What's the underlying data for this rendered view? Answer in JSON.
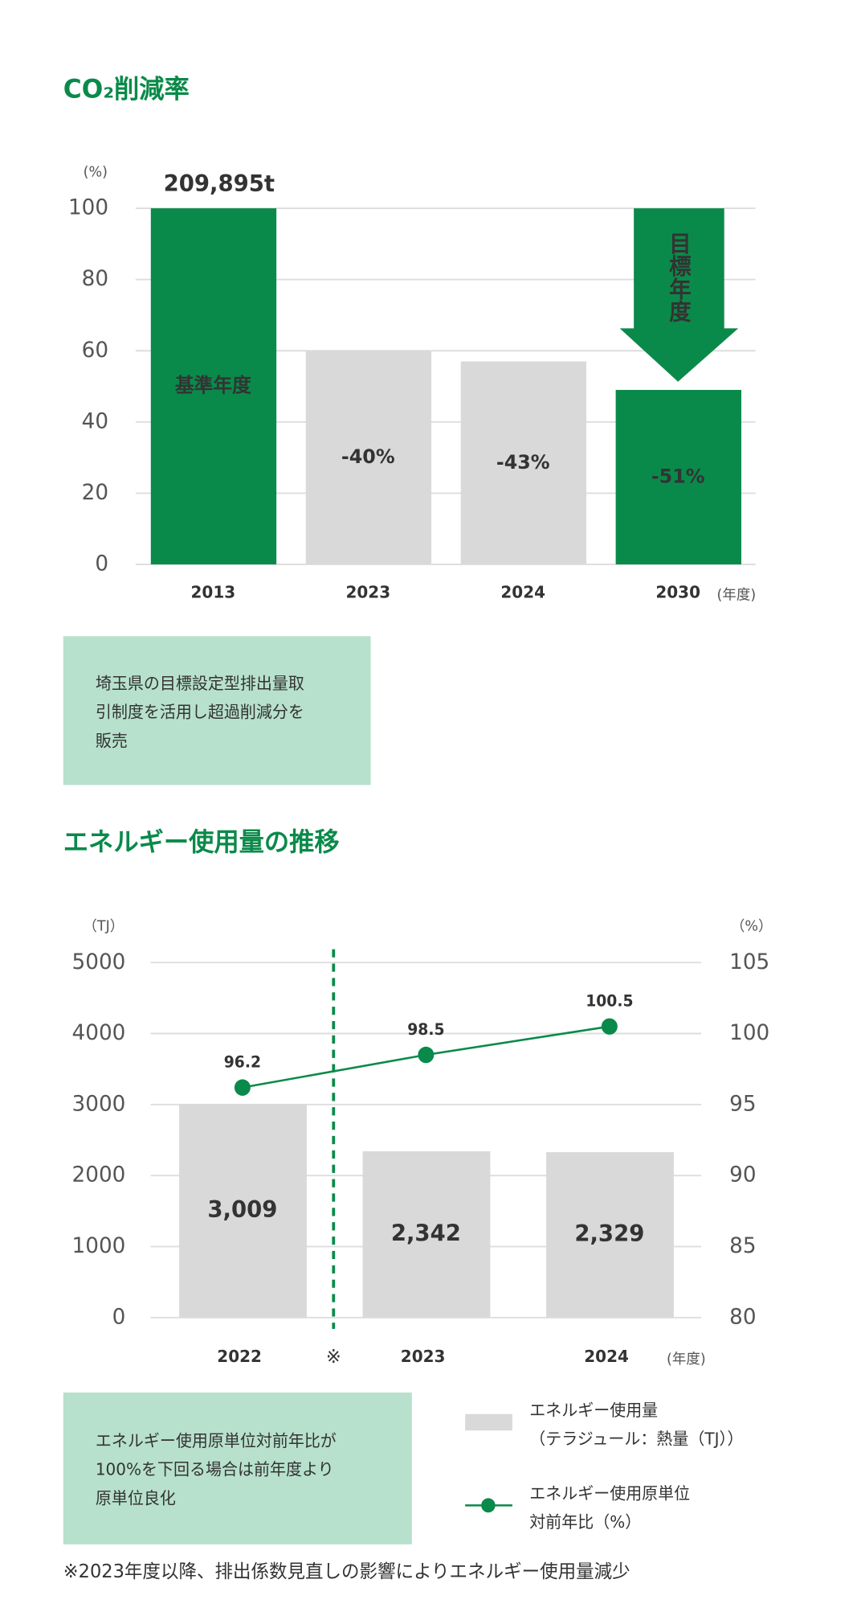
{
  "chart_data": [
    {
      "type": "bar",
      "title": "CO₂削減率",
      "y_unit": "(%)",
      "x_unit": "(年度)",
      "categories": [
        "2013",
        "2023",
        "2024",
        "2030"
      ],
      "values": [
        100,
        60,
        57,
        49
      ],
      "colors": [
        "#0a8a4a",
        "#d9d9d9",
        "#d9d9d9",
        "#0a8a4a"
      ],
      "bar_labels": [
        "基準年度",
        "-40%",
        "-43%",
        "-51%"
      ],
      "base_annotation": "209,895t",
      "target_annotation": "目標年度",
      "ylim": [
        0,
        100
      ],
      "yticks": [
        0,
        20,
        40,
        60,
        80,
        100
      ],
      "grid": true,
      "note": [
        "埼玉県の目標設定型排出量取",
        "引制度を活用し超過削減分を",
        "販売"
      ]
    },
    {
      "type": "bar_line",
      "title": "エネルギー使用量の推移",
      "y_unit": "（TJ）",
      "y2_unit": "（%）",
      "x_unit": "(年度)",
      "categories": [
        "2022",
        "2023",
        "2024"
      ],
      "series": [
        {
          "name": "エネルギー使用量\n（テラジュール：熱量（TJ））",
          "color": "#d9d9d9",
          "values": [
            3009,
            2342,
            2329
          ],
          "value_labels": [
            "3,009",
            "2,342",
            "2,329"
          ]
        },
        {
          "name": "エネルギー使用原単位\n対前年比（%）",
          "color": "#0a8a4a",
          "axis": "y2",
          "values": [
            96.2,
            98.5,
            100.5
          ]
        }
      ],
      "ylim": [
        0,
        5000
      ],
      "yticks": [
        0,
        1000,
        2000,
        3000,
        4000,
        5000
      ],
      "y2lim": [
        80,
        105
      ],
      "y2ticks": [
        80,
        85,
        90,
        95,
        100,
        105
      ],
      "grid": true,
      "divider_mark": "※",
      "note": [
        "エネルギー使用原単位対前年比が",
        "100%を下回る場合は前年度より",
        "原単位良化"
      ],
      "footnote": "※2023年度以降、排出係数見直しの影響によりエネルギー使用量減少"
    }
  ]
}
